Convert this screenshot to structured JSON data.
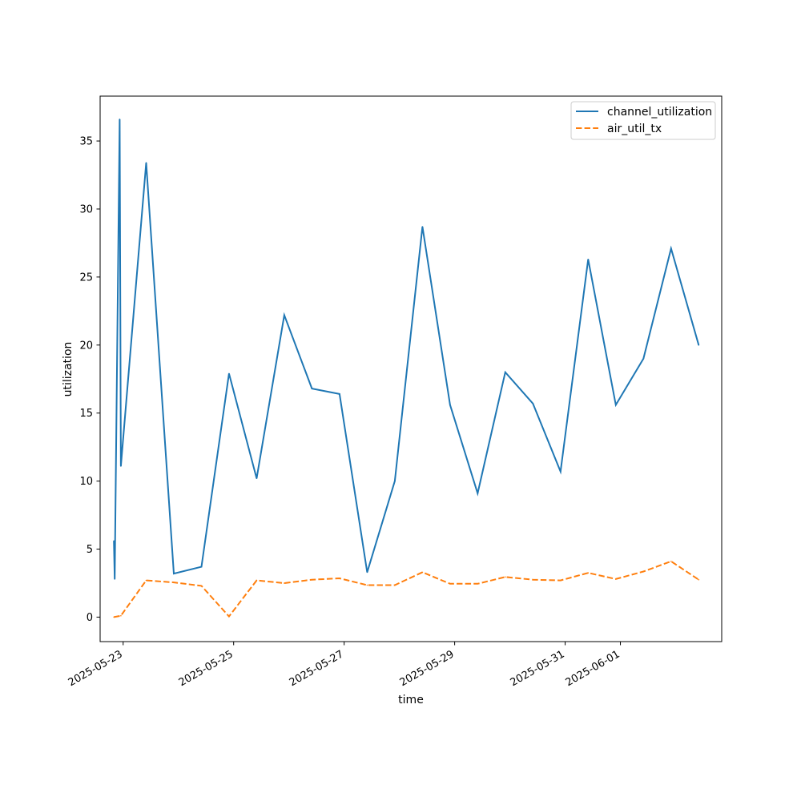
{
  "chart_data": {
    "type": "line",
    "xlabel": "time",
    "ylabel": "utilization",
    "x_type": "datetime",
    "xlim": [
      "2025-05-22T14:00",
      "2025-06-02T20:00"
    ],
    "ylim": [
      -1.8,
      38.3
    ],
    "x_ticks": [
      "2025-05-23",
      "2025-05-25",
      "2025-05-27",
      "2025-05-29",
      "2025-05-31",
      "2025-06-01"
    ],
    "y_ticks": [
      0,
      5,
      10,
      15,
      20,
      25,
      30,
      35
    ],
    "legend": "top-right",
    "grid": false,
    "series": [
      {
        "name": "channel_utilization",
        "color": "#1f77b4",
        "dash": "solid",
        "points": [
          [
            "2025-05-22T20:00",
            5.6
          ],
          [
            "2025-05-22T20:20",
            2.8
          ],
          [
            "2025-05-22T22:30",
            36.6
          ],
          [
            "2025-05-22T23:00",
            11.1
          ],
          [
            "2025-05-23T10:00",
            33.4
          ],
          [
            "2025-05-23T22:00",
            3.2
          ],
          [
            "2025-05-24T10:00",
            3.7
          ],
          [
            "2025-05-24T22:00",
            17.9
          ],
          [
            "2025-05-25T10:00",
            10.2
          ],
          [
            "2025-05-25T22:00",
            22.2
          ],
          [
            "2025-05-26T10:00",
            16.8
          ],
          [
            "2025-05-26T22:00",
            16.4
          ],
          [
            "2025-05-27T10:00",
            3.3
          ],
          [
            "2025-05-27T22:00",
            10.0
          ],
          [
            "2025-05-28T10:00",
            28.7
          ],
          [
            "2025-05-28T22:00",
            15.6
          ],
          [
            "2025-05-29T10:00",
            9.1
          ],
          [
            "2025-05-29T22:00",
            18.0
          ],
          [
            "2025-05-30T10:00",
            15.7
          ],
          [
            "2025-05-30T22:00",
            10.7
          ],
          [
            "2025-05-31T10:00",
            26.3
          ],
          [
            "2025-05-31T22:00",
            15.6
          ],
          [
            "2025-06-01T10:00",
            19.0
          ],
          [
            "2025-06-01T22:00",
            27.1
          ],
          [
            "2025-06-02T10:00",
            20.0
          ]
        ]
      },
      {
        "name": "air_util_tx",
        "color": "#ff7f0e",
        "dash": "dashed",
        "points": [
          [
            "2025-05-22T20:00",
            0.0
          ],
          [
            "2025-05-22T23:00",
            0.1
          ],
          [
            "2025-05-23T10:00",
            2.7
          ],
          [
            "2025-05-23T22:00",
            2.55
          ],
          [
            "2025-05-24T10:00",
            2.3
          ],
          [
            "2025-05-24T22:00",
            0.05
          ],
          [
            "2025-05-25T10:00",
            2.7
          ],
          [
            "2025-05-25T22:00",
            2.5
          ],
          [
            "2025-05-26T10:00",
            2.75
          ],
          [
            "2025-05-26T22:00",
            2.85
          ],
          [
            "2025-05-27T10:00",
            2.35
          ],
          [
            "2025-05-27T22:00",
            2.35
          ],
          [
            "2025-05-28T10:00",
            3.3
          ],
          [
            "2025-05-28T22:00",
            2.45
          ],
          [
            "2025-05-29T10:00",
            2.45
          ],
          [
            "2025-05-29T22:00",
            2.95
          ],
          [
            "2025-05-30T10:00",
            2.75
          ],
          [
            "2025-05-30T22:00",
            2.7
          ],
          [
            "2025-05-31T10:00",
            3.25
          ],
          [
            "2025-05-31T22:00",
            2.8
          ],
          [
            "2025-06-01T10:00",
            3.35
          ],
          [
            "2025-06-01T22:00",
            4.1
          ],
          [
            "2025-06-02T10:00",
            2.75
          ]
        ]
      }
    ]
  }
}
